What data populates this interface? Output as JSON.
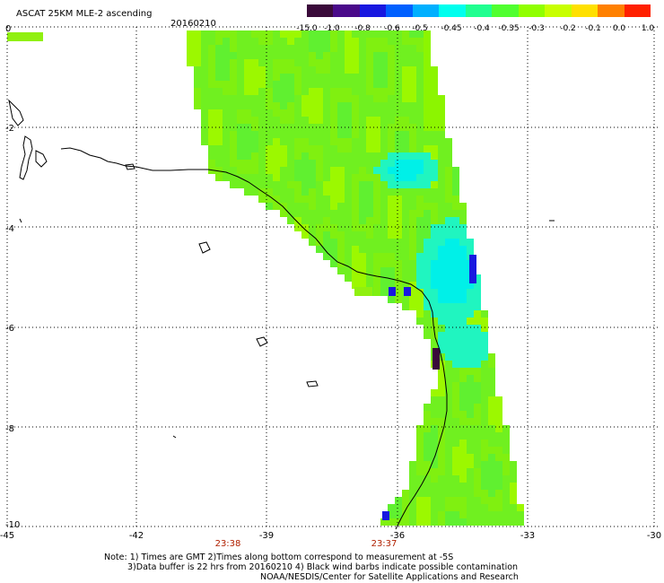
{
  "header": {
    "title": "ASCAT 25KM MLE-2 ascending",
    "date": "20160210"
  },
  "colorbar": {
    "labels": [
      "-15.0",
      "-1.0",
      "-0.8",
      "-0.6",
      "-0.5",
      "-0.45",
      "-0.4",
      "-0.35",
      "-0.3",
      "-0.2",
      "-0.1",
      "0.0",
      "1.0"
    ],
    "colors": [
      "#3a0a3a",
      "#4a0a8a",
      "#1818e0",
      "#0060ff",
      "#00b0ff",
      "#00ffee",
      "#20ff90",
      "#50ff30",
      "#90ff00",
      "#c8ff00",
      "#ffe000",
      "#ff8000",
      "#ff2000"
    ]
  },
  "axes": {
    "y_labels": [
      "0",
      "-2",
      "-4",
      "-6",
      "-8",
      "-10"
    ],
    "x_labels": [
      "-45",
      "-42",
      "-39",
      "-36",
      "-33",
      "-30"
    ],
    "time_labels": [
      "23:38",
      "23:37"
    ],
    "time_color": "#b02000"
  },
  "notes": {
    "line1": "Note: 1) Times are GMT 2)Times along bottom correspond to measurement at -5S",
    "line2": "3)Data buffer is 22 hrs from 20160210 4) Black wind barbs indicate possible contamination",
    "line3": "NOAA/NESDIS/Center for Satellite Applications and Research"
  }
}
